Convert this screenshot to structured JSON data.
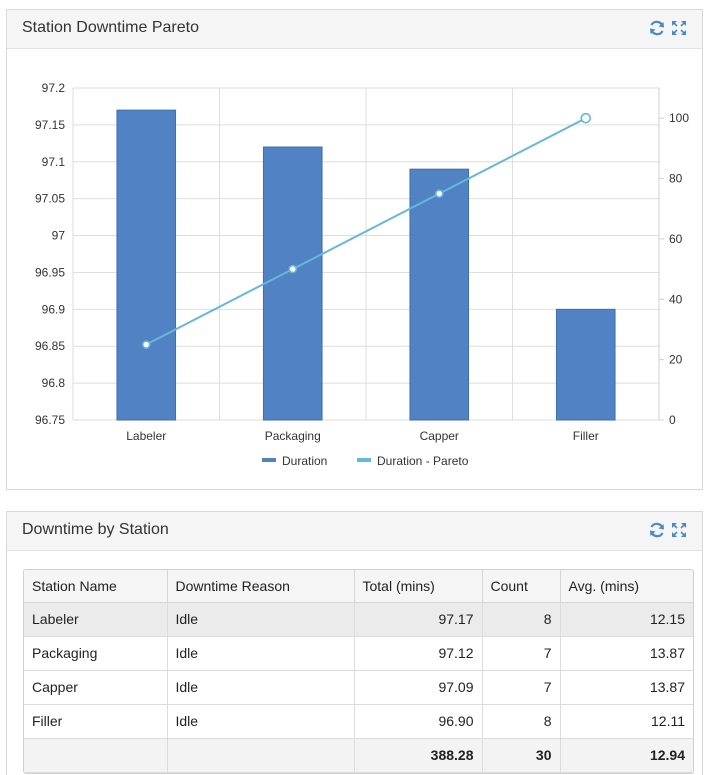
{
  "chart_panel": {
    "title": "Station Downtime Pareto",
    "tools": [
      "refresh-icon",
      "expand-icon"
    ]
  },
  "chart_data": {
    "type": "bar",
    "categories": [
      "Labeler",
      "Packaging",
      "Capper",
      "Filler"
    ],
    "series": [
      {
        "name": "Duration",
        "type": "bar",
        "axis": "left",
        "values": [
          97.17,
          97.12,
          97.09,
          96.9
        ],
        "color": "#5183c4"
      },
      {
        "name": "Duration - Pareto",
        "type": "line",
        "axis": "right",
        "values": [
          25,
          50,
          75,
          100
        ],
        "color": "#66b8d8"
      }
    ],
    "y_left": {
      "min": 96.75,
      "max": 97.2,
      "ticks": [
        "96.75",
        "96.8",
        "96.85",
        "96.9",
        "96.95",
        "97",
        "97.05",
        "97.1",
        "97.15",
        "97.2"
      ]
    },
    "y_right": {
      "min": 0,
      "max": 110,
      "ticks": [
        "0",
        "20",
        "40",
        "60",
        "80",
        "100"
      ]
    },
    "grid": true,
    "legend": "bottom"
  },
  "table_panel": {
    "title": "Downtime by Station",
    "columns": [
      "Station Name",
      "Downtime Reason",
      "Total (mins)",
      "Count",
      "Avg. (mins)"
    ],
    "rows": [
      [
        "Labeler",
        "Idle",
        "97.17",
        "8",
        "12.15"
      ],
      [
        "Packaging",
        "Idle",
        "97.12",
        "7",
        "13.87"
      ],
      [
        "Capper",
        "Idle",
        "97.09",
        "7",
        "13.87"
      ],
      [
        "Filler",
        "Idle",
        "96.90",
        "8",
        "12.11"
      ]
    ],
    "totals": [
      "",
      "",
      "388.28",
      "30",
      "12.94"
    ],
    "selected_row": 0
  },
  "colors": {
    "accent": "#4a89c8",
    "bar": "#5183c4",
    "line": "#66b8d8"
  }
}
